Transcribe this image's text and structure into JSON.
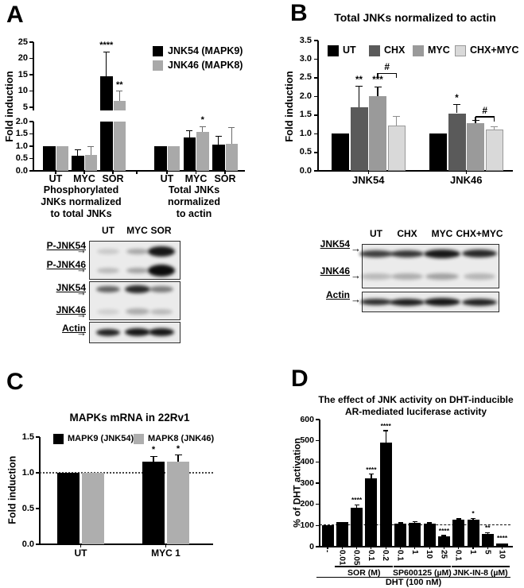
{
  "panels": {
    "A": {
      "label": "A"
    },
    "B": {
      "label": "B"
    },
    "C": {
      "label": "C"
    },
    "D": {
      "label": "D"
    }
  },
  "chart_data": [
    {
      "panel": "A",
      "type": "bar",
      "title": "",
      "ylabel": "Fold induction",
      "axis_break": true,
      "upper_axis": {
        "range": [
          5,
          25
        ],
        "ticks": [
          "25",
          "20",
          "15",
          "10",
          "5"
        ]
      },
      "lower_axis": {
        "range": [
          0,
          2
        ],
        "ticks": [
          "2.0",
          "1.5",
          "1.0",
          "0.5",
          "0.0"
        ]
      },
      "legend": [
        "JNK54 (MAPK9)",
        "JNK46 (MAPK8)"
      ],
      "series_colors": [
        "#000000",
        "#a9a9a9"
      ],
      "groups": [
        {
          "caption": "Phosphorylated\nJNKs normalized\nto total JNKs",
          "categories": [
            "UT",
            "MYC",
            "SOR"
          ],
          "series": [
            {
              "name": "JNK54 (MAPK9)",
              "values": [
                1.0,
                0.6,
                14.5
              ],
              "errors": [
                0,
                0.25,
                7.5
              ],
              "sig": [
                "",
                "",
                "****"
              ]
            },
            {
              "name": "JNK46 (MAPK8)",
              "values": [
                1.0,
                0.65,
                7.0
              ],
              "errors": [
                0,
                0.33,
                3.0
              ],
              "sig": [
                "",
                "",
                "**"
              ]
            }
          ]
        },
        {
          "caption": "Total JNKs\nnormalized\nto actin",
          "categories": [
            "UT",
            "MYC",
            "SOR"
          ],
          "series": [
            {
              "name": "JNK54 (MAPK9)",
              "values": [
                1.0,
                1.37,
                1.05
              ],
              "errors": [
                0,
                0.25,
                0.35
              ],
              "sig": [
                "",
                "",
                ""
              ]
            },
            {
              "name": "JNK46 (MAPK8)",
              "values": [
                1.0,
                1.58,
                1.1
              ],
              "errors": [
                0,
                0.22,
                0.65
              ],
              "sig": [
                "",
                "*",
                ""
              ]
            }
          ]
        }
      ]
    },
    {
      "panel": "B",
      "type": "bar",
      "title": "Total JNKs normalized to actin",
      "ylabel": "Fold induction",
      "ylim": [
        0,
        3.5
      ],
      "yticks": [
        "0.0",
        "0.5",
        "1.0",
        "1.5",
        "2.0",
        "2.5",
        "3.0",
        "3.5"
      ],
      "legend": [
        "UT",
        "CHX",
        "MYC",
        "CHX+MYC"
      ],
      "series_colors": [
        "#000000",
        "#5a5a5a",
        "#9a9a9a",
        "#d9d9d9"
      ],
      "groups": [
        {
          "label": "JNK54",
          "values": [
            1.0,
            1.72,
            2.0,
            1.23
          ],
          "errors": [
            0,
            0.55,
            0.26,
            0.23
          ],
          "sig": [
            "",
            "**",
            "***",
            ""
          ],
          "hash_bracket": {
            "between": [
              "MYC",
              "CHX+MYC"
            ],
            "y": 2.62,
            "label": "#"
          }
        },
        {
          "label": "JNK46",
          "values": [
            1.0,
            1.55,
            1.28,
            1.12
          ],
          "errors": [
            0,
            0.23,
            0.08,
            0.07
          ],
          "sig": [
            "",
            "*",
            "",
            ""
          ],
          "hash_bracket": {
            "between": [
              "MYC",
              "CHX+MYC"
            ],
            "y": 1.45,
            "label": "#"
          }
        }
      ]
    },
    {
      "panel": "C",
      "type": "bar",
      "title": "MAPKs mRNA in 22Rv1",
      "ylabel": "Fold induction",
      "ylim": [
        0,
        1.5
      ],
      "yticks": [
        "0.0",
        "0.5",
        "1.0",
        "1.5"
      ],
      "reference_line": 1.0,
      "legend": [
        "MAPK9 (JNK54)",
        "MAPK8 (JNK46)"
      ],
      "series_colors": [
        "#000000",
        "#aeaeae"
      ],
      "groups": [
        {
          "label": "UT",
          "values": [
            1.0,
            1.0
          ],
          "errors": [
            0,
            0
          ],
          "sig": [
            "",
            ""
          ]
        },
        {
          "label": "MYC 1",
          "values": [
            1.16,
            1.16
          ],
          "errors": [
            0.07,
            0.09
          ],
          "sig": [
            "*",
            "*"
          ]
        }
      ]
    },
    {
      "panel": "D",
      "type": "bar",
      "title": "The effect of JNK activity on DHT-inducible\nAR-mediated luciferase activity",
      "ylabel": "% of DHT activation",
      "ylim": [
        0,
        600
      ],
      "yticks": [
        "0",
        "100",
        "200",
        "300",
        "400",
        "500",
        "600"
      ],
      "reference_line": 100,
      "bar_color": "#000000",
      "bars": [
        {
          "label": "-",
          "value": 100,
          "error": 3,
          "sig": ""
        },
        {
          "label": "0.01",
          "value": 118,
          "error": 4,
          "sig": ""
        },
        {
          "label": "0.05",
          "value": 185,
          "error": 12,
          "sig": "****"
        },
        {
          "label": "0.1",
          "value": 322,
          "error": 20,
          "sig": "****"
        },
        {
          "label": "0.2",
          "value": 492,
          "error": 55,
          "sig": "****"
        },
        {
          "label": "0.1",
          "value": 108,
          "error": 5,
          "sig": ""
        },
        {
          "label": "1",
          "value": 113,
          "error": 5,
          "sig": ""
        },
        {
          "label": "10",
          "value": 107,
          "error": 5,
          "sig": ""
        },
        {
          "label": "25",
          "value": 47,
          "error": 5,
          "sig": "****"
        },
        {
          "label": "0.1",
          "value": 126,
          "error": 5,
          "sig": ""
        },
        {
          "label": "1",
          "value": 127,
          "error": 7,
          "sig": "*"
        },
        {
          "label": "5",
          "value": 60,
          "error": 6,
          "sig": "**"
        },
        {
          "label": "10",
          "value": 15,
          "error": 4,
          "sig": "****"
        }
      ],
      "treatment_groups": [
        {
          "label": "SOR (M)",
          "bars": [
            1,
            4
          ]
        },
        {
          "label": "SP600125 (µM)",
          "bars": [
            5,
            8
          ]
        },
        {
          "label": "JNK-IN-8 (µM)",
          "bars": [
            9,
            12
          ]
        }
      ],
      "base_treatment": {
        "label": "DHT (100 nM)",
        "bars": [
          0,
          12
        ]
      }
    }
  ],
  "blots": {
    "A": {
      "col_headers": [
        "UT",
        "MYC",
        "SOR"
      ],
      "rows": [
        {
          "label": "P-JNK54",
          "bands": [
            0.15,
            0.3,
            0.95
          ]
        },
        {
          "label": "P-JNK46",
          "bands": [
            0.22,
            0.32,
            1.0
          ]
        },
        {
          "label": "JNK54",
          "bands": [
            0.62,
            0.88,
            0.5
          ]
        },
        {
          "label": "JNK46",
          "bands": [
            0.12,
            0.28,
            0.22
          ]
        },
        {
          "label": "Actin",
          "bands": [
            0.9,
            0.95,
            0.95
          ]
        }
      ]
    },
    "B": {
      "col_headers": [
        "UT",
        "CHX",
        "MYC",
        "CHX+MYC"
      ],
      "rows": [
        {
          "label": "JNK54",
          "bands": [
            0.78,
            0.82,
            0.95,
            0.88
          ]
        },
        {
          "label": "JNK46",
          "bands": [
            0.22,
            0.28,
            0.33,
            0.24
          ]
        },
        {
          "label": "Actin",
          "bands": [
            0.85,
            0.92,
            0.95,
            0.9
          ]
        }
      ]
    }
  }
}
